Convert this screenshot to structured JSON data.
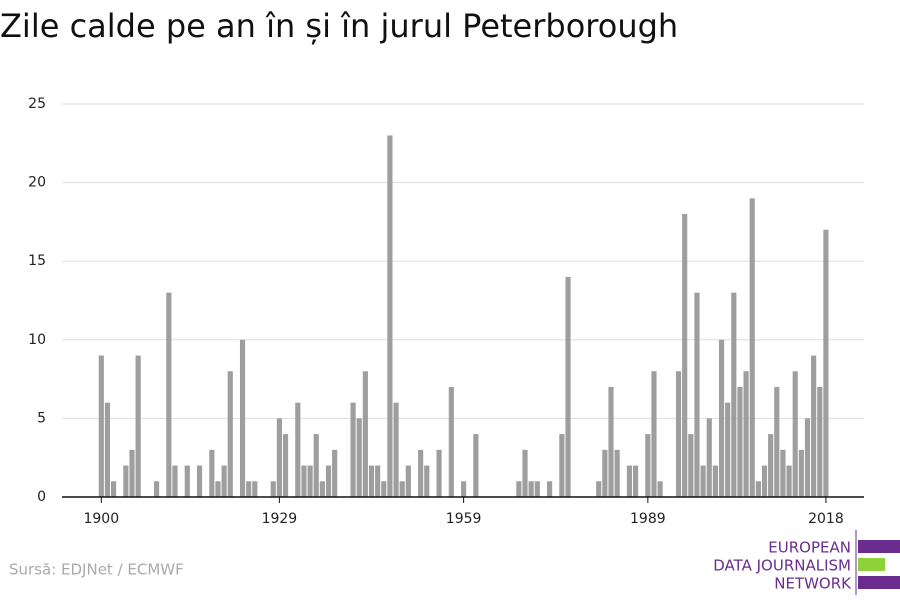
{
  "chart_data": {
    "type": "bar",
    "title": "Zile calde pe an în și în jurul Peterborough",
    "source": "Sursă: EDJNet / ECMWF",
    "logo": [
      "EUROPEAN",
      "DATA JOURNALISM",
      "NETWORK"
    ],
    "color": "#9e9e9e",
    "x": [
      1900,
      1901,
      1902,
      1903,
      1904,
      1905,
      1906,
      1907,
      1908,
      1909,
      1910,
      1911,
      1912,
      1913,
      1914,
      1915,
      1916,
      1917,
      1918,
      1919,
      1920,
      1921,
      1922,
      1923,
      1924,
      1925,
      1926,
      1927,
      1928,
      1929,
      1930,
      1931,
      1932,
      1933,
      1934,
      1935,
      1936,
      1937,
      1938,
      1939,
      1940,
      1941,
      1942,
      1943,
      1944,
      1945,
      1946,
      1947,
      1948,
      1949,
      1950,
      1951,
      1952,
      1953,
      1954,
      1955,
      1956,
      1957,
      1958,
      1959,
      1960,
      1961,
      1962,
      1963,
      1964,
      1965,
      1966,
      1967,
      1968,
      1969,
      1970,
      1971,
      1972,
      1973,
      1974,
      1975,
      1976,
      1977,
      1978,
      1979,
      1980,
      1981,
      1982,
      1983,
      1984,
      1985,
      1986,
      1987,
      1988,
      1989,
      1990,
      1991,
      1992,
      1993,
      1994,
      1995,
      1996,
      1997,
      1998,
      1999,
      2000,
      2001,
      2002,
      2003,
      2004,
      2005,
      2006,
      2007,
      2008,
      2009,
      2010,
      2011,
      2012,
      2013,
      2014,
      2015,
      2016,
      2017,
      2018
    ],
    "values": [
      9,
      6,
      1,
      0,
      2,
      3,
      9,
      0,
      0,
      1,
      0,
      13,
      2,
      0,
      2,
      0,
      2,
      0,
      3,
      1,
      2,
      8,
      0,
      10,
      1,
      1,
      0,
      0,
      1,
      5,
      4,
      0,
      6,
      2,
      2,
      4,
      1,
      2,
      3,
      0,
      0,
      6,
      5,
      8,
      2,
      2,
      1,
      23,
      6,
      1,
      2,
      0,
      3,
      2,
      0,
      3,
      0,
      7,
      0,
      1,
      0,
      4,
      0,
      0,
      0,
      0,
      0,
      0,
      1,
      3,
      1,
      1,
      0,
      1,
      0,
      4,
      14,
      0,
      0,
      0,
      0,
      1,
      3,
      7,
      3,
      0,
      2,
      2,
      0,
      4,
      8,
      1,
      0,
      0,
      8,
      18,
      4,
      13,
      2,
      5,
      2,
      10,
      6,
      13,
      7,
      8,
      19,
      1,
      2,
      4,
      7,
      3,
      2,
      8,
      3,
      5,
      9,
      7,
      17
    ],
    "xlim": [
      1893.6,
      2024.2
    ],
    "xticks": [
      1900,
      1929,
      1959,
      1989,
      2018
    ],
    "ylim": [
      0,
      25
    ],
    "yticks": [
      0,
      5,
      10,
      15,
      20,
      25
    ],
    "grid": true
  }
}
